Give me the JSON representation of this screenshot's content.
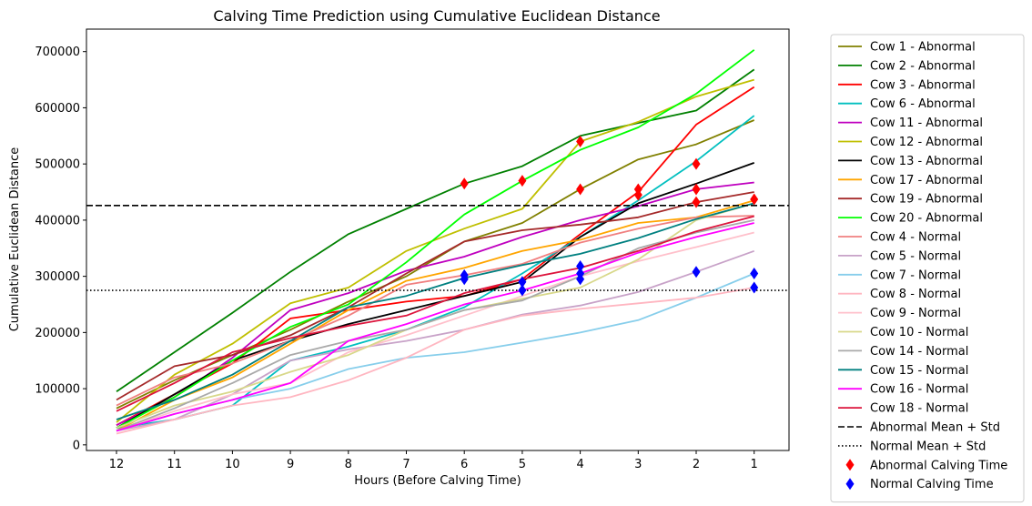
{
  "chart_data": {
    "type": "line",
    "title": "Calving Time Prediction using Cumulative Euclidean Distance",
    "xlabel": "Hours (Before Calving Time)",
    "ylabel": "Cumulative Euclidean Distance",
    "categories": [
      "12",
      "11",
      "10",
      "9",
      "8",
      "7",
      "6",
      "5",
      "4",
      "3",
      "2",
      "1"
    ],
    "ylim": [
      -10000,
      740000
    ],
    "yticks": [
      0,
      100000,
      200000,
      300000,
      400000,
      500000,
      600000,
      700000
    ],
    "ytick_labels": [
      "0",
      "100000",
      "200000",
      "300000",
      "400000",
      "500000",
      "600000",
      "700000"
    ],
    "grid": false,
    "legend_position": "outside-right",
    "series": [
      {
        "name": "Cow 1 - Abnormal",
        "color": "#808000",
        "values": [
          65000,
          115000,
          160000,
          205000,
          255000,
          300000,
          362000,
          395000,
          455000,
          508000,
          535000,
          578000
        ]
      },
      {
        "name": "Cow 2 - Abnormal",
        "color": "#008000",
        "values": [
          95000,
          165000,
          235000,
          308000,
          375000,
          420000,
          465000,
          496000,
          550000,
          573000,
          595000,
          668000
        ]
      },
      {
        "name": "Cow 3 - Abnormal",
        "color": "#ff0000",
        "values": [
          35000,
          90000,
          145000,
          225000,
          240000,
          255000,
          265000,
          295000,
          375000,
          450000,
          570000,
          637000
        ]
      },
      {
        "name": "Cow 6 - Abnormal",
        "color": "#00bfbf",
        "values": [
          30000,
          45000,
          70000,
          150000,
          175000,
          205000,
          245000,
          305000,
          370000,
          435000,
          505000,
          586000
        ]
      },
      {
        "name": "Cow 11 - Abnormal",
        "color": "#bf00bf",
        "values": [
          35000,
          85000,
          155000,
          240000,
          270000,
          310000,
          335000,
          370000,
          400000,
          425000,
          455000,
          467000
        ]
      },
      {
        "name": "Cow 12 - Abnormal",
        "color": "#bfbf00",
        "values": [
          40000,
          125000,
          180000,
          252000,
          280000,
          345000,
          385000,
          420000,
          540000,
          575000,
          620000,
          650000
        ]
      },
      {
        "name": "Cow 13 - Abnormal",
        "color": "#000000",
        "values": [
          30000,
          90000,
          150000,
          185000,
          215000,
          240000,
          265000,
          290000,
          370000,
          430000,
          465000,
          502000
        ]
      },
      {
        "name": "Cow 17 - Abnormal",
        "color": "#ffa500",
        "values": [
          25000,
          80000,
          120000,
          180000,
          240000,
          292000,
          315000,
          345000,
          365000,
          395000,
          405000,
          435000
        ]
      },
      {
        "name": "Cow 19 - Abnormal",
        "color": "#a52a2a",
        "values": [
          80000,
          140000,
          160000,
          195000,
          245000,
          305000,
          362000,
          382000,
          392000,
          405000,
          432000,
          450000
        ]
      },
      {
        "name": "Cow 20 - Abnormal",
        "color": "#00ff00",
        "values": [
          30000,
          85000,
          150000,
          210000,
          250000,
          325000,
          410000,
          470000,
          525000,
          565000,
          625000,
          703000
        ]
      },
      {
        "name": "Cow 4 - Normal",
        "color": "#f08080",
        "values": [
          70000,
          120000,
          145000,
          185000,
          230000,
          285000,
          302000,
          322000,
          360000,
          385000,
          405000,
          408000
        ]
      },
      {
        "name": "Cow 5 - Normal",
        "color": "#c8a2c8",
        "values": [
          25000,
          45000,
          90000,
          150000,
          170000,
          185000,
          205000,
          232000,
          248000,
          272000,
          308000,
          345000
        ]
      },
      {
        "name": "Cow 7 - Normal",
        "color": "#87ceeb",
        "values": [
          25000,
          55000,
          80000,
          100000,
          135000,
          155000,
          165000,
          182000,
          200000,
          222000,
          262000,
          305000
        ]
      },
      {
        "name": "Cow 8 - Normal",
        "color": "#ffb6c1",
        "values": [
          20000,
          45000,
          70000,
          85000,
          115000,
          155000,
          205000,
          230000,
          242000,
          252000,
          262000,
          280000
        ]
      },
      {
        "name": "Cow 9 - Normal",
        "color": "#ffc0cb",
        "values": [
          25000,
          60000,
          90000,
          110000,
          165000,
          195000,
          230000,
          265000,
          300000,
          327000,
          352000,
          378000
        ]
      },
      {
        "name": "Cow 10 - Normal",
        "color": "#d8d88a",
        "values": [
          30000,
          70000,
          95000,
          130000,
          160000,
          205000,
          240000,
          260000,
          280000,
          330000,
          400000,
          430000
        ]
      },
      {
        "name": "Cow 14 - Normal",
        "color": "#a9a9a9",
        "values": [
          25000,
          65000,
          110000,
          160000,
          185000,
          205000,
          240000,
          257000,
          300000,
          350000,
          378000,
          400000
        ]
      },
      {
        "name": "Cow 15 - Normal",
        "color": "#008080",
        "values": [
          45000,
          80000,
          125000,
          185000,
          245000,
          265000,
          297000,
          320000,
          340000,
          368000,
          402000,
          430000
        ]
      },
      {
        "name": "Cow 16 - Normal",
        "color": "#ff00ff",
        "values": [
          25000,
          55000,
          80000,
          110000,
          185000,
          215000,
          250000,
          275000,
          305000,
          342000,
          370000,
          395000
        ]
      },
      {
        "name": "Cow 18 - Normal",
        "color": "#dc143c",
        "values": [
          60000,
          110000,
          165000,
          190000,
          212000,
          230000,
          270000,
          295000,
          315000,
          345000,
          380000,
          407000
        ]
      }
    ],
    "hlines": [
      {
        "name": "Abnormal Mean + Std",
        "y": 426000,
        "style": "dashed",
        "color": "#000000"
      },
      {
        "name": "Normal Mean + Std",
        "y": 275000,
        "style": "dotted",
        "color": "#000000"
      }
    ],
    "markers": [
      {
        "name": "Abnormal Calving Time",
        "color": "#ff0000",
        "points": [
          {
            "x": "6",
            "y": 465000
          },
          {
            "x": "5",
            "y": 470000
          },
          {
            "x": "4",
            "y": 540000
          },
          {
            "x": "4",
            "y": 455000
          },
          {
            "x": "3",
            "y": 455000
          },
          {
            "x": "3",
            "y": 445000
          },
          {
            "x": "2",
            "y": 500000
          },
          {
            "x": "2",
            "y": 455000
          },
          {
            "x": "2",
            "y": 432000
          },
          {
            "x": "1",
            "y": 437000
          }
        ]
      },
      {
        "name": "Normal Calving Time",
        "color": "#0000ff",
        "points": [
          {
            "x": "6",
            "y": 302000
          },
          {
            "x": "6",
            "y": 295000
          },
          {
            "x": "5",
            "y": 290000
          },
          {
            "x": "5",
            "y": 275000
          },
          {
            "x": "4",
            "y": 318000
          },
          {
            "x": "4",
            "y": 305000
          },
          {
            "x": "4",
            "y": 295000
          },
          {
            "x": "2",
            "y": 308000
          },
          {
            "x": "1",
            "y": 305000
          },
          {
            "x": "1",
            "y": 280000
          }
        ]
      }
    ]
  }
}
